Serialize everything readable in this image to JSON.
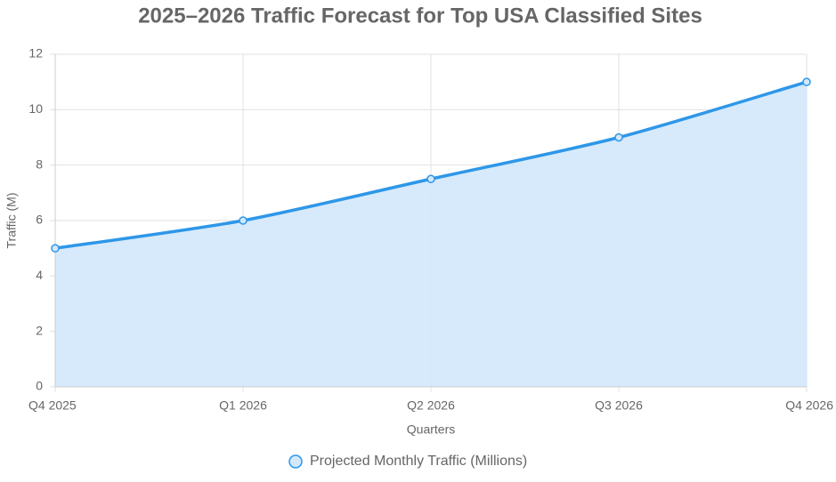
{
  "chart_data": {
    "type": "line",
    "title": "2025–2026 Traffic Forecast for Top USA Classified Sites",
    "x_label": "Quarters",
    "y_label": "Traffic (M)",
    "categories": [
      "Q4 2025",
      "Q1 2026",
      "Q2 2026",
      "Q3 2026",
      "Q4 2026"
    ],
    "series": [
      {
        "name": "Projected Monthly Traffic (Millions)",
        "color": "#2e97e8",
        "fill": "#d3e8fb",
        "values": [
          5,
          6,
          7.5,
          9,
          11
        ]
      }
    ],
    "ylim": [
      0,
      12
    ],
    "yticks": [
      0,
      2,
      4,
      6,
      8,
      10,
      12
    ],
    "grid": true,
    "legend": "bottom"
  }
}
